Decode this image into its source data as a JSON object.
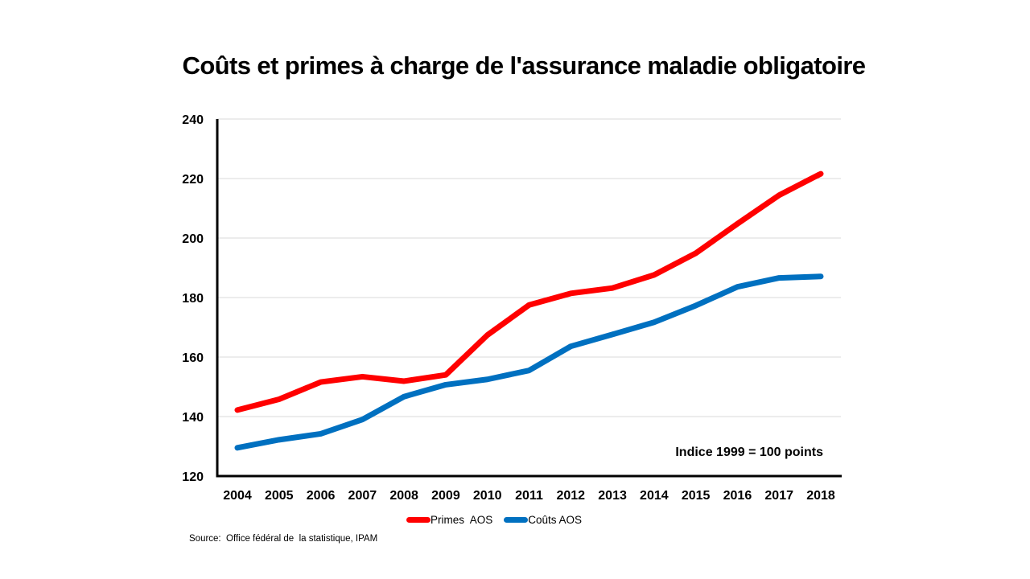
{
  "chart_data": {
    "type": "line",
    "title": "Coûts et primes à charge de l'assurance maladie obligatoire",
    "xlabel": "",
    "ylabel": "",
    "categories": [
      "2004",
      "2005",
      "2006",
      "2007",
      "2008",
      "2009",
      "2010",
      "2011",
      "2012",
      "2013",
      "2014",
      "2015",
      "2016",
      "2017",
      "2018"
    ],
    "series": [
      {
        "name": "Primes  AOS",
        "color": "#FF0000",
        "values": [
          142.2,
          145.8,
          151.6,
          153.4,
          151.9,
          154.0,
          167.4,
          177.5,
          181.4,
          183.2,
          187.6,
          194.9,
          204.8,
          214.4,
          221.6
        ]
      },
      {
        "name": "Coûts AOS",
        "color": "#0070C0",
        "values": [
          129.5,
          132.2,
          134.2,
          139.0,
          146.7,
          150.7,
          152.5,
          155.5,
          163.6,
          167.6,
          171.7,
          177.3,
          183.6,
          186.6,
          187.1
        ]
      }
    ],
    "ylim": [
      120,
      240
    ],
    "yticks": [
      "120",
      "140",
      "160",
      "180",
      "200",
      "220",
      "240"
    ],
    "ytick_values": [
      120,
      140,
      160,
      180,
      200,
      220,
      240
    ],
    "grid": true,
    "legend_position": "bottom",
    "annotation": "Indice 1999 = 100 points"
  },
  "source": "Source:  Office fédéral de  la statistique, IPAM"
}
